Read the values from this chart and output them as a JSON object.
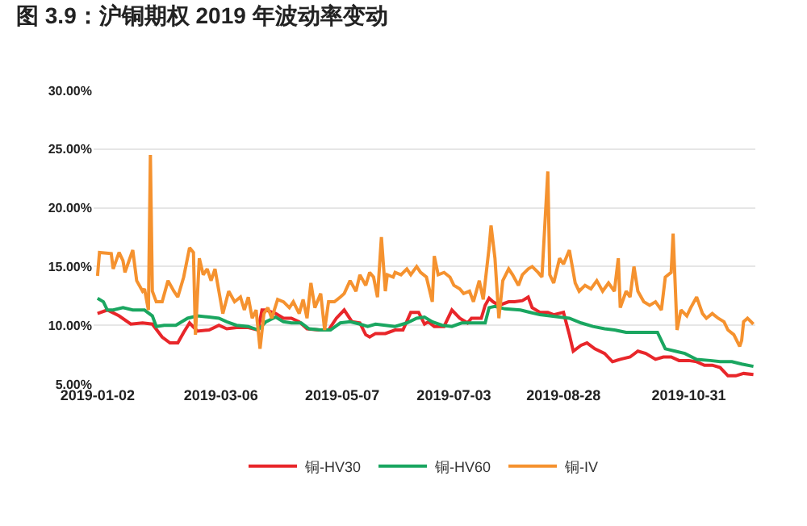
{
  "chart_data": {
    "type": "line",
    "title": "图 3.9：沪铜期权 2019 年波动率变动",
    "xlim": [
      "2018-12-31",
      "2019-12-04"
    ],
    "xticks": [
      {
        "value": "2019-01-02",
        "label": "2019-01-02"
      },
      {
        "value": "2019-03-06",
        "label": "2019-03-06"
      },
      {
        "value": "2019-05-07",
        "label": "2019-05-07"
      },
      {
        "value": "2019-07-03",
        "label": "2019-07-03"
      },
      {
        "value": "2019-08-28",
        "label": "2019-08-28"
      },
      {
        "value": "2019-10-31",
        "label": "2019-10-31"
      }
    ],
    "ylim": [
      5,
      30
    ],
    "yticks": [
      {
        "value": 5,
        "label": "5.00%"
      },
      {
        "value": 10,
        "label": "10.00%"
      },
      {
        "value": 15,
        "label": "15.00%"
      },
      {
        "value": 20,
        "label": "20.00%"
      },
      {
        "value": 25,
        "label": "25.00%"
      },
      {
        "value": 30,
        "label": "30.00%"
      }
    ],
    "grid": "y",
    "legend": "bottom",
    "marker": "none",
    "line_style": "solid",
    "series": [
      {
        "name": "铜-HV30",
        "color": "#e8262a",
        "x": [
          "2019-01-02",
          "2019-01-07",
          "2019-01-13",
          "2019-01-19",
          "2019-01-25",
          "2019-01-30",
          "2019-02-04",
          "2019-02-08",
          "2019-02-12",
          "2019-02-15",
          "2019-02-18",
          "2019-02-22",
          "2019-02-28",
          "2019-03-05",
          "2019-03-09",
          "2019-03-14",
          "2019-03-20",
          "2019-03-25",
          "2019-03-27",
          "2019-03-29",
          "2019-04-03",
          "2019-04-07",
          "2019-04-11",
          "2019-04-15",
          "2019-04-19",
          "2019-04-25",
          "2019-04-30",
          "2019-05-04",
          "2019-05-08",
          "2019-05-12",
          "2019-05-16",
          "2019-05-19",
          "2019-05-21",
          "2019-05-24",
          "2019-05-29",
          "2019-06-03",
          "2019-06-07",
          "2019-06-11",
          "2019-06-15",
          "2019-06-18",
          "2019-06-20",
          "2019-06-23",
          "2019-06-28",
          "2019-07-02",
          "2019-07-06",
          "2019-07-10",
          "2019-07-12",
          "2019-07-17",
          "2019-07-19",
          "2019-07-21",
          "2019-07-23",
          "2019-07-26",
          "2019-07-31",
          "2019-08-03",
          "2019-08-07",
          "2019-08-10",
          "2019-08-12",
          "2019-08-16",
          "2019-08-20",
          "2019-08-23",
          "2019-08-28",
          "2019-08-31",
          "2019-09-02",
          "2019-09-06",
          "2019-09-09",
          "2019-09-13",
          "2019-09-18",
          "2019-09-22",
          "2019-09-26",
          "2019-10-01",
          "2019-10-05",
          "2019-10-09",
          "2019-10-14",
          "2019-10-18",
          "2019-10-22",
          "2019-10-26",
          "2019-10-31",
          "2019-11-04",
          "2019-11-08",
          "2019-11-12",
          "2019-11-16",
          "2019-11-20",
          "2019-11-24",
          "2019-11-28",
          "2019-12-03"
        ],
        "values": [
          11.0,
          11.3,
          10.8,
          10.1,
          10.2,
          10.1,
          9.0,
          8.5,
          8.5,
          9.4,
          10.2,
          9.5,
          9.6,
          10.0,
          9.7,
          9.8,
          9.8,
          9.6,
          11.3,
          11.3,
          11.0,
          10.6,
          10.6,
          10.3,
          9.7,
          9.6,
          9.6,
          10.6,
          11.3,
          10.3,
          10.2,
          9.2,
          9.0,
          9.3,
          9.3,
          9.6,
          9.6,
          11.1,
          11.1,
          10.1,
          10.3,
          9.9,
          9.9,
          11.3,
          10.6,
          10.2,
          10.6,
          10.6,
          11.7,
          12.3,
          12.0,
          11.7,
          12.0,
          12.0,
          12.1,
          12.4,
          11.5,
          11.1,
          11.1,
          10.9,
          11.1,
          9.2,
          7.8,
          8.3,
          8.5,
          8.0,
          7.6,
          6.9,
          7.1,
          7.3,
          7.8,
          7.6,
          7.1,
          7.3,
          7.3,
          7.0,
          7.0,
          6.9,
          6.6,
          6.6,
          6.4,
          5.7,
          5.7,
          5.9,
          5.8
        ]
      },
      {
        "name": "铜-HV60",
        "color": "#1aa660",
        "x": [
          "2019-01-02",
          "2019-01-05",
          "2019-01-07",
          "2019-01-10",
          "2019-01-15",
          "2019-01-20",
          "2019-01-26",
          "2019-01-30",
          "2019-02-01",
          "2019-02-05",
          "2019-02-11",
          "2019-02-17",
          "2019-02-22",
          "2019-02-28",
          "2019-03-05",
          "2019-03-09",
          "2019-03-14",
          "2019-03-20",
          "2019-03-25",
          "2019-03-29",
          "2019-04-03",
          "2019-04-07",
          "2019-04-11",
          "2019-04-16",
          "2019-04-20",
          "2019-04-26",
          "2019-05-01",
          "2019-05-06",
          "2019-05-11",
          "2019-05-16",
          "2019-05-20",
          "2019-05-24",
          "2019-05-29",
          "2019-06-03",
          "2019-06-09",
          "2019-06-14",
          "2019-06-18",
          "2019-06-22",
          "2019-06-27",
          "2019-07-02",
          "2019-07-07",
          "2019-07-14",
          "2019-07-19",
          "2019-07-21",
          "2019-07-24",
          "2019-07-29",
          "2019-08-06",
          "2019-08-11",
          "2019-08-16",
          "2019-08-21",
          "2019-08-26",
          "2019-08-31",
          "2019-09-06",
          "2019-09-12",
          "2019-09-18",
          "2019-09-23",
          "2019-09-29",
          "2019-10-05",
          "2019-10-11",
          "2019-10-15",
          "2019-10-17",
          "2019-10-19",
          "2019-10-24",
          "2019-10-29",
          "2019-11-04",
          "2019-11-11",
          "2019-11-16",
          "2019-11-22",
          "2019-11-27",
          "2019-12-03"
        ],
        "values": [
          12.3,
          12.0,
          11.3,
          11.3,
          11.5,
          11.3,
          11.3,
          10.8,
          9.9,
          10.0,
          10.0,
          10.6,
          10.8,
          10.7,
          10.6,
          10.3,
          10.0,
          9.9,
          9.6,
          10.3,
          10.7,
          10.3,
          10.2,
          10.2,
          9.7,
          9.6,
          9.6,
          10.2,
          10.3,
          10.1,
          9.9,
          10.1,
          10.0,
          9.9,
          10.2,
          10.6,
          10.7,
          10.3,
          10.0,
          9.9,
          10.2,
          10.2,
          10.2,
          11.5,
          11.6,
          11.4,
          11.3,
          11.1,
          10.9,
          10.8,
          10.7,
          10.6,
          10.2,
          9.9,
          9.7,
          9.6,
          9.4,
          9.4,
          9.4,
          9.4,
          8.7,
          8.0,
          7.8,
          7.6,
          7.1,
          7.0,
          6.9,
          6.9,
          6.7,
          6.5
        ]
      },
      {
        "name": "铜-IV",
        "color": "#f5922f",
        "x": [
          "2019-01-02",
          "2019-01-03",
          "2019-01-09",
          "2019-01-10",
          "2019-01-13",
          "2019-01-15",
          "2019-01-16",
          "2019-01-20",
          "2019-01-22",
          "2019-01-25",
          "2019-01-26",
          "2019-01-28",
          "2019-01-29",
          "2019-01-30",
          "2019-02-01",
          "2019-02-04",
          "2019-02-07",
          "2019-02-10",
          "2019-02-12",
          "2019-02-15",
          "2019-02-18",
          "2019-02-20",
          "2019-02-21",
          "2019-02-23",
          "2019-02-25",
          "2019-02-27",
          "2019-03-01",
          "2019-03-03",
          "2019-03-05",
          "2019-03-07",
          "2019-03-10",
          "2019-03-13",
          "2019-03-16",
          "2019-03-18",
          "2019-03-20",
          "2019-03-22",
          "2019-03-24",
          "2019-03-26",
          "2019-03-28",
          "2019-03-30",
          "2019-04-01",
          "2019-04-04",
          "2019-04-07",
          "2019-04-10",
          "2019-04-12",
          "2019-04-15",
          "2019-04-17",
          "2019-04-19",
          "2019-04-21",
          "2019-04-23",
          "2019-04-26",
          "2019-04-28",
          "2019-04-30",
          "2019-05-03",
          "2019-05-06",
          "2019-05-08",
          "2019-05-11",
          "2019-05-14",
          "2019-05-16",
          "2019-05-19",
          "2019-05-21",
          "2019-05-23",
          "2019-05-25",
          "2019-05-27",
          "2019-05-29",
          "2019-05-30",
          "2019-06-02",
          "2019-06-03",
          "2019-06-06",
          "2019-06-09",
          "2019-06-11",
          "2019-06-14",
          "2019-06-16",
          "2019-06-19",
          "2019-06-22",
          "2019-06-23",
          "2019-06-25",
          "2019-06-28",
          "2019-07-01",
          "2019-07-03",
          "2019-07-06",
          "2019-07-08",
          "2019-07-11",
          "2019-07-13",
          "2019-07-16",
          "2019-07-18",
          "2019-07-21",
          "2019-07-22",
          "2019-07-24",
          "2019-07-26",
          "2019-07-28",
          "2019-07-31",
          "2019-08-02",
          "2019-08-05",
          "2019-08-07",
          "2019-08-10",
          "2019-08-12",
          "2019-08-15",
          "2019-08-17",
          "2019-08-20",
          "2019-08-21",
          "2019-08-23",
          "2019-08-26",
          "2019-08-28",
          "2019-08-31",
          "2019-09-03",
          "2019-09-05",
          "2019-09-08",
          "2019-09-11",
          "2019-09-14",
          "2019-09-17",
          "2019-09-20",
          "2019-09-23",
          "2019-09-25",
          "2019-09-26",
          "2019-09-29",
          "2019-10-01",
          "2019-10-03",
          "2019-10-05",
          "2019-10-08",
          "2019-10-11",
          "2019-10-14",
          "2019-10-17",
          "2019-10-19",
          "2019-10-22",
          "2019-10-23",
          "2019-10-25",
          "2019-10-27",
          "2019-10-30",
          "2019-11-01",
          "2019-11-04",
          "2019-11-07",
          "2019-11-09",
          "2019-11-12",
          "2019-11-15",
          "2019-11-18",
          "2019-11-20",
          "2019-11-23",
          "2019-11-26",
          "2019-11-27",
          "2019-11-28",
          "2019-11-30",
          "2019-12-03"
        ],
        "values": [
          14.2,
          16.2,
          16.1,
          14.8,
          16.2,
          15.5,
          14.5,
          16.4,
          13.8,
          12.9,
          13.1,
          11.3,
          24.5,
          12.9,
          12.0,
          12.0,
          13.8,
          12.9,
          12.4,
          14.1,
          16.6,
          16.2,
          9.2,
          15.7,
          14.3,
          14.8,
          13.8,
          14.8,
          12.9,
          11.0,
          12.9,
          12.0,
          12.4,
          11.3,
          12.4,
          10.6,
          11.3,
          8.0,
          11.0,
          11.5,
          10.6,
          12.2,
          12.0,
          11.5,
          12.0,
          11.0,
          12.2,
          10.6,
          13.6,
          11.5,
          12.7,
          9.6,
          12.0,
          12.0,
          12.4,
          12.7,
          13.8,
          12.9,
          14.3,
          13.4,
          14.5,
          14.1,
          12.4,
          17.5,
          12.9,
          14.3,
          14.1,
          14.5,
          14.3,
          14.8,
          14.3,
          15.0,
          14.5,
          14.1,
          12.0,
          15.9,
          14.3,
          14.5,
          14.1,
          13.4,
          13.1,
          12.7,
          12.9,
          12.0,
          13.8,
          12.2,
          16.6,
          18.5,
          15.7,
          10.6,
          13.8,
          14.8,
          14.3,
          13.4,
          14.3,
          14.8,
          15.0,
          14.5,
          14.1,
          23.1,
          14.3,
          13.6,
          15.7,
          15.2,
          16.4,
          13.6,
          12.9,
          13.4,
          13.1,
          13.8,
          12.9,
          13.6,
          12.9,
          15.7,
          11.5,
          12.9,
          12.4,
          15.0,
          12.9,
          12.0,
          11.7,
          12.0,
          11.3,
          14.1,
          14.5,
          17.8,
          9.6,
          11.3,
          10.8,
          11.5,
          12.4,
          11.0,
          10.6,
          11.0,
          10.6,
          10.3,
          9.6,
          9.2,
          8.2,
          8.7,
          10.3,
          10.6,
          10.1
        ]
      }
    ]
  }
}
